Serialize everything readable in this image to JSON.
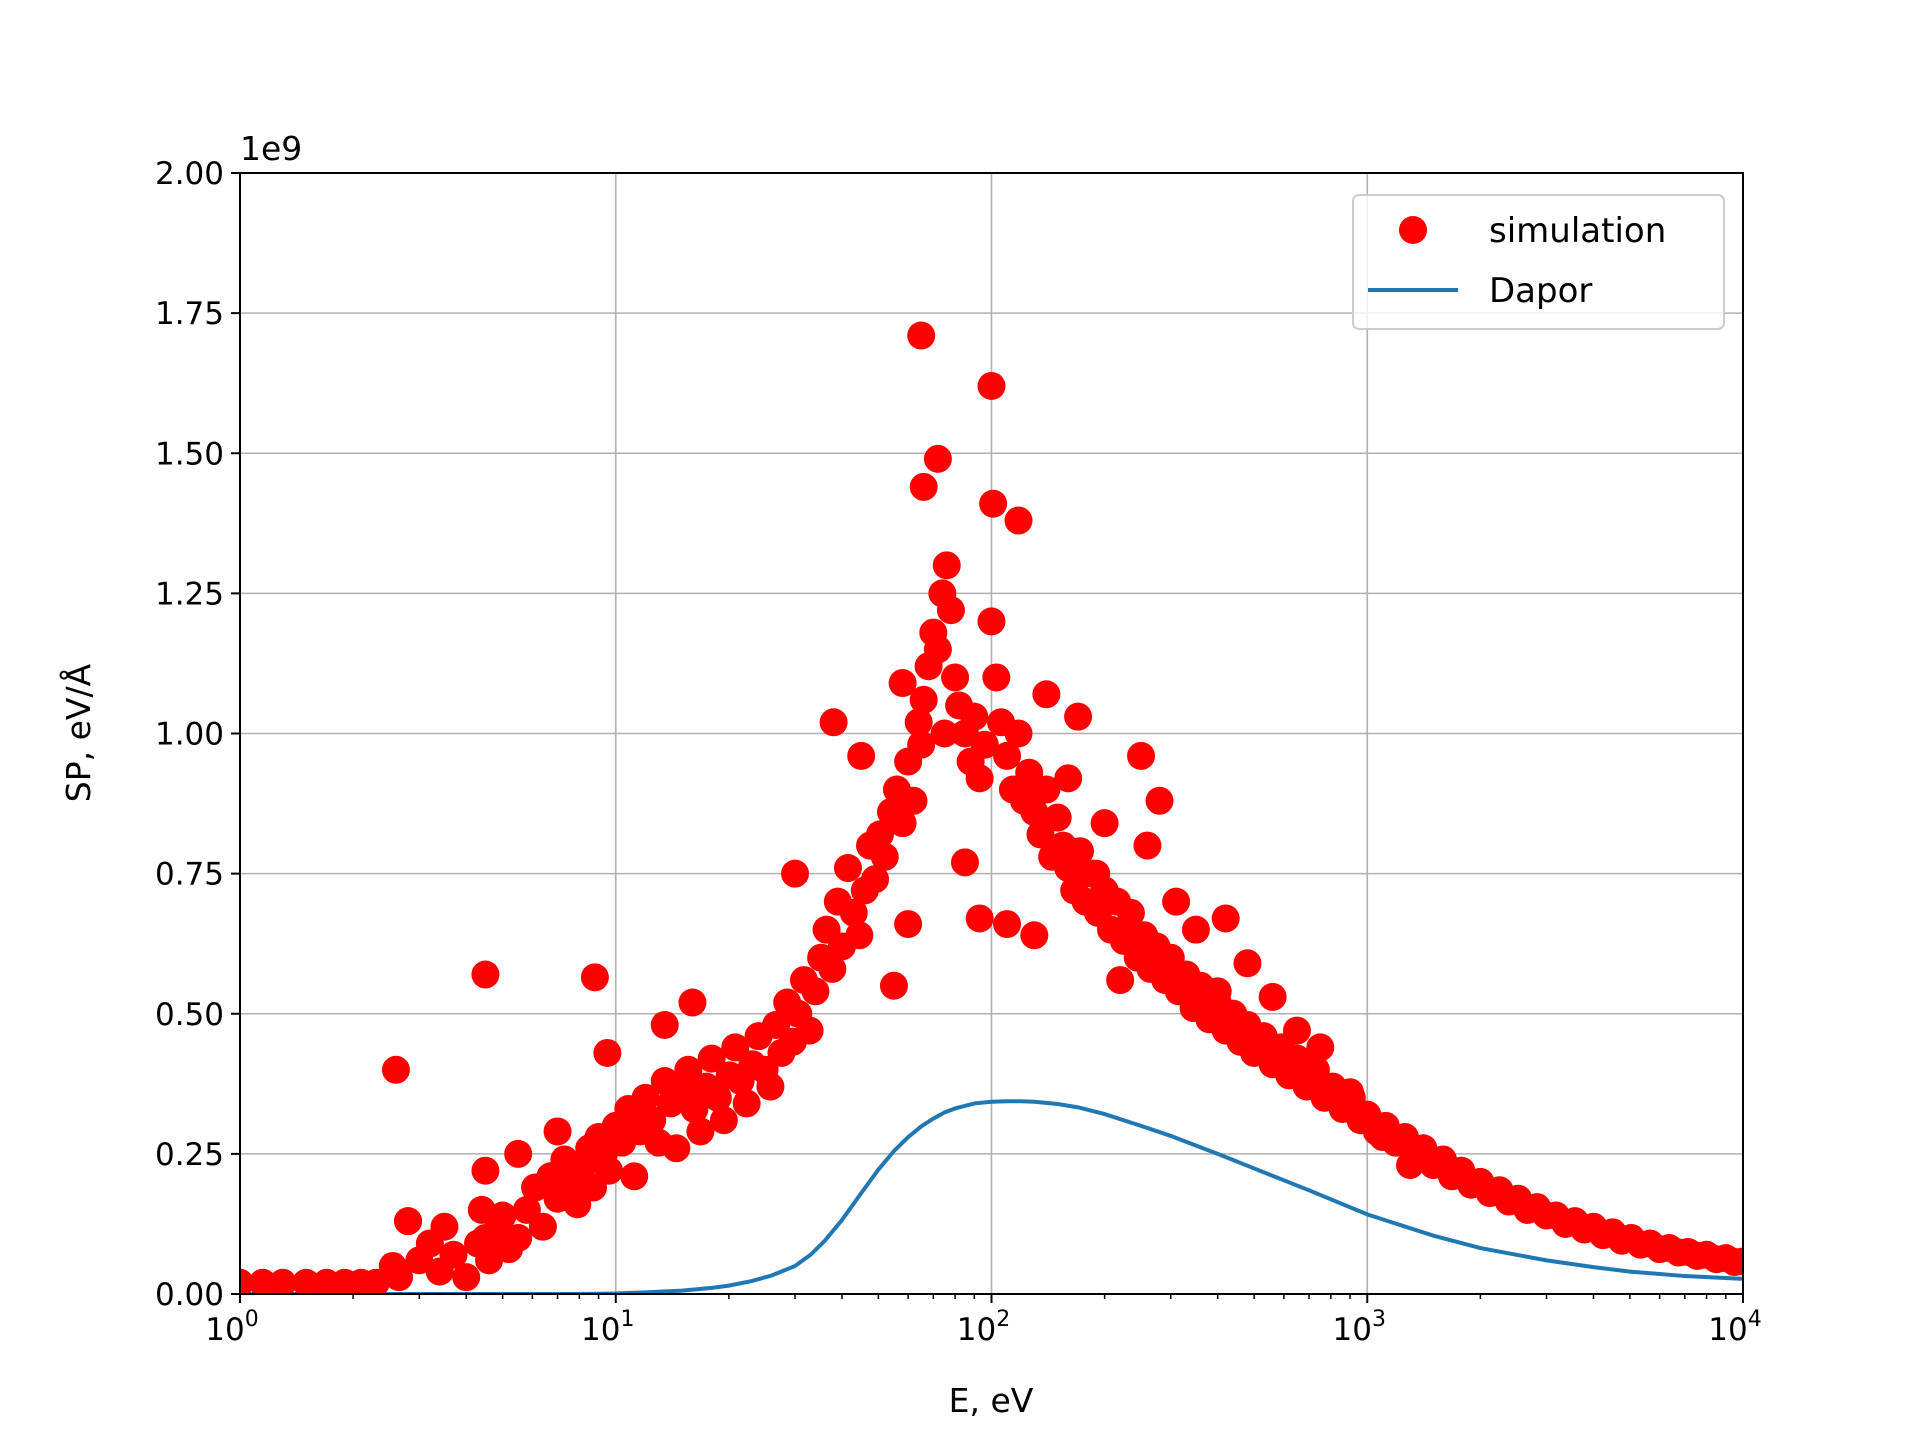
{
  "chart_data": {
    "type": "scatter",
    "xlabel": "E, eV",
    "ylabel": "SP, eV/Å",
    "x_scale": "log",
    "xlim": [
      1,
      10000
    ],
    "ylim": [
      0,
      2000000000
    ],
    "y_offset_text": "1e9",
    "y_ticks": [
      {
        "value": 0,
        "label": "0.00"
      },
      {
        "value": 250000000,
        "label": "0.25"
      },
      {
        "value": 500000000,
        "label": "0.50"
      },
      {
        "value": 750000000,
        "label": "0.75"
      },
      {
        "value": 1000000000,
        "label": "1.00"
      },
      {
        "value": 1250000000,
        "label": "1.25"
      },
      {
        "value": 1500000000,
        "label": "1.50"
      },
      {
        "value": 1750000000,
        "label": "1.75"
      },
      {
        "value": 2000000000,
        "label": "2.00"
      }
    ],
    "x_ticks": [
      {
        "value": 1,
        "base": "10",
        "exp": "0"
      },
      {
        "value": 10,
        "base": "10",
        "exp": "1"
      },
      {
        "value": 100,
        "base": "10",
        "exp": "2"
      },
      {
        "value": 1000,
        "base": "10",
        "exp": "3"
      },
      {
        "value": 10000,
        "base": "10",
        "exp": "4"
      }
    ],
    "grid": true,
    "legend_position": "top-right",
    "colors": {
      "simulation": "#ff0000",
      "dapor": "#1f77b4"
    },
    "series": [
      {
        "name": "simulation",
        "kind": "markers",
        "x": [
          1.0,
          1.15,
          1.3,
          1.5,
          1.7,
          1.9,
          2.1,
          2.3,
          2.55,
          2.65,
          2.8,
          3.0,
          3.2,
          3.4,
          3.7,
          4.0,
          4.3,
          4.4,
          4.5,
          4.6,
          4.8,
          5.0,
          5.2,
          5.5,
          5.8,
          6.1,
          6.4,
          6.7,
          7.0,
          7.3,
          7.6,
          7.9,
          8.2,
          8.5,
          8.7,
          9.0,
          9.3,
          9.6,
          10.0,
          10.4,
          10.8,
          11.2,
          11.6,
          12.0,
          12.5,
          13.0,
          13.5,
          14.0,
          14.5,
          15.0,
          15.6,
          16.2,
          16.8,
          17.4,
          18.0,
          18.7,
          19.4,
          20.1,
          20.8,
          21.5,
          22.3,
          23.1,
          24.0,
          24.9,
          25.8,
          26.7,
          27.6,
          28.6,
          29.6,
          30.6,
          31.7,
          32.8,
          34.0,
          35.2,
          36.4,
          37.7,
          39.0,
          40.0,
          41.5,
          43.0,
          44.5,
          46.0,
          47.5,
          49.0,
          50.5,
          52.0,
          54.0,
          56.0,
          58.0,
          60.0,
          62.0,
          64.0,
          65.0,
          66.0,
          68.0,
          70.0,
          72.0,
          74.0,
          76.0,
          78.0,
          80.0,
          82.0,
          85.0,
          88.0,
          90.0,
          93.0,
          96.0,
          100.0,
          103.0,
          106.0,
          110.0,
          114.0,
          118.0,
          122.0,
          126.0,
          130.0,
          135.0,
          140.0,
          145.0,
          150.0,
          155.0,
          160.0,
          166.0,
          172.0,
          178.0,
          185.0,
          192.0,
          200.0,
          208.0,
          216.0,
          225.0,
          235.0,
          245.0,
          255.0,
          265.0,
          275.0,
          290.0,
          300.0,
          315.0,
          330.0,
          345.0,
          360.0,
          380.0,
          400.0,
          420.0,
          440.0,
          460.0,
          480.0,
          500.0,
          530.0,
          560.0,
          590.0,
          620.0,
          650.0,
          690.0,
          730.0,
          770.0,
          810.0,
          860.0,
          910.0,
          960.0,
          1000.0,
          1060.0,
          1120.0,
          1190.0,
          1260.0,
          1330.0,
          1410.0,
          1500.0,
          1590.0,
          1680.0,
          1780.0,
          1890.0,
          2000.0,
          2120.0,
          2250.0,
          2380.0,
          2520.0,
          2670.0,
          2830.0,
          3000.0,
          3180.0,
          3370.0,
          3570.0,
          3780.0,
          4000.0,
          4240.0,
          4500.0,
          4760.0,
          5040.0,
          5340.0,
          5660.0,
          6000.0,
          6360.0,
          6740.0,
          7140.0,
          7560.0,
          8000.0,
          8500.0,
          9000.0,
          9500.0,
          10000.0,
          2.6,
          4.5,
          8.8,
          65.0,
          100.0,
          72.0,
          66.0,
          101.0,
          118.0,
          38.0,
          30.0,
          58.0,
          93.0,
          250.0,
          420.0,
          220.0,
          16.0,
          13.5,
          9.5,
          7.0,
          5.5,
          4.5,
          3.5,
          2.8,
          120.0,
          140.0,
          170.0,
          200.0,
          280.0,
          60.0,
          45.0,
          55.0,
          75.0,
          85.0,
          110.0,
          130.0,
          160.0,
          190.0,
          230.0,
          260.0,
          310.0,
          350.0,
          400.0,
          480.0,
          560.0,
          650.0,
          750.0,
          900.0,
          1100.0,
          1300.0
        ],
        "y": [
          20000000,
          20000000,
          20000000,
          20000000,
          20000000,
          20000000,
          20000000,
          20000000,
          50000000,
          30000000,
          130000000,
          60000000,
          90000000,
          40000000,
          70000000,
          30000000,
          90000000,
          150000000,
          100000000,
          60000000,
          110000000,
          140000000,
          80000000,
          100000000,
          150000000,
          190000000,
          120000000,
          210000000,
          170000000,
          240000000,
          200000000,
          160000000,
          230000000,
          260000000,
          190000000,
          280000000,
          250000000,
          220000000,
          300000000,
          270000000,
          330000000,
          210000000,
          290000000,
          350000000,
          310000000,
          270000000,
          380000000,
          340000000,
          260000000,
          360000000,
          400000000,
          330000000,
          290000000,
          370000000,
          420000000,
          350000000,
          310000000,
          390000000,
          440000000,
          380000000,
          340000000,
          410000000,
          460000000,
          400000000,
          370000000,
          480000000,
          430000000,
          520000000,
          450000000,
          500000000,
          560000000,
          470000000,
          540000000,
          600000000,
          650000000,
          580000000,
          700000000,
          620000000,
          760000000,
          680000000,
          640000000,
          720000000,
          800000000,
          740000000,
          820000000,
          780000000,
          860000000,
          900000000,
          840000000,
          950000000,
          880000000,
          1020000000,
          980000000,
          1060000000,
          1120000000,
          1180000000,
          1150000000,
          1250000000,
          1300000000,
          1220000000,
          1100000000,
          1050000000,
          1000000000,
          950000000,
          1030000000,
          920000000,
          980000000,
          1200000000,
          1100000000,
          1020000000,
          960000000,
          900000000,
          1000000000,
          880000000,
          930000000,
          860000000,
          820000000,
          900000000,
          780000000,
          850000000,
          800000000,
          760000000,
          720000000,
          790000000,
          700000000,
          750000000,
          680000000,
          720000000,
          650000000,
          700000000,
          630000000,
          680000000,
          600000000,
          640000000,
          580000000,
          620000000,
          560000000,
          600000000,
          540000000,
          570000000,
          510000000,
          550000000,
          490000000,
          520000000,
          470000000,
          500000000,
          450000000,
          480000000,
          430000000,
          460000000,
          410000000,
          440000000,
          390000000,
          420000000,
          370000000,
          400000000,
          350000000,
          370000000,
          330000000,
          350000000,
          310000000,
          320000000,
          290000000,
          300000000,
          270000000,
          280000000,
          250000000,
          260000000,
          230000000,
          240000000,
          210000000,
          220000000,
          195000000,
          200000000,
          180000000,
          185000000,
          165000000,
          170000000,
          150000000,
          155000000,
          140000000,
          140000000,
          125000000,
          130000000,
          115000000,
          120000000,
          105000000,
          110000000,
          95000000,
          100000000,
          88000000,
          90000000,
          80000000,
          82000000,
          74000000,
          75000000,
          68000000,
          70000000,
          62000000,
          64000000,
          57000000,
          58000000,
          400000000,
          570000000,
          565000000,
          1710000000,
          1620000000,
          1490000000,
          1440000000,
          1410000000,
          1380000000,
          1020000000,
          750000000,
          1090000000,
          670000000,
          960000000,
          670000000,
          560000000,
          520000000,
          480000000,
          430000000,
          290000000,
          250000000,
          220000000,
          120000000,
          130000000,
          900000000,
          1070000000,
          1030000000,
          840000000,
          880000000,
          660000000,
          960000000,
          550000000,
          1000000000,
          770000000,
          660000000,
          640000000,
          920000000,
          750000000,
          650000000,
          800000000,
          700000000,
          650000000,
          540000000,
          590000000,
          530000000,
          470000000,
          440000000,
          360000000,
          280000000,
          230000000
        ]
      },
      {
        "name": "Dapor",
        "kind": "line",
        "x": [
          1,
          2,
          4,
          6,
          8,
          10,
          12,
          15,
          18,
          20,
          23,
          26,
          30,
          33,
          36,
          40,
          45,
          50,
          55,
          60,
          65,
          70,
          75,
          80,
          90,
          100,
          110,
          120,
          130,
          150,
          170,
          200,
          250,
          300,
          400,
          500,
          700,
          1000,
          1500,
          2000,
          3000,
          4000,
          5000,
          7000,
          10000
        ],
        "y": [
          0,
          0,
          0,
          0,
          0,
          1000000,
          3000000,
          6000000,
          11000000,
          15000000,
          23000000,
          33000000,
          50000000,
          70000000,
          95000000,
          132000000,
          180000000,
          222000000,
          255000000,
          280000000,
          299000000,
          313000000,
          324000000,
          331000000,
          340000000,
          343000000,
          344000000,
          344000000,
          343000000,
          339000000,
          333000000,
          321000000,
          300000000,
          282000000,
          250000000,
          224000000,
          185000000,
          142000000,
          104000000,
          82000000,
          60000000,
          48000000,
          40000000,
          32000000,
          27000000
        ]
      }
    ]
  }
}
